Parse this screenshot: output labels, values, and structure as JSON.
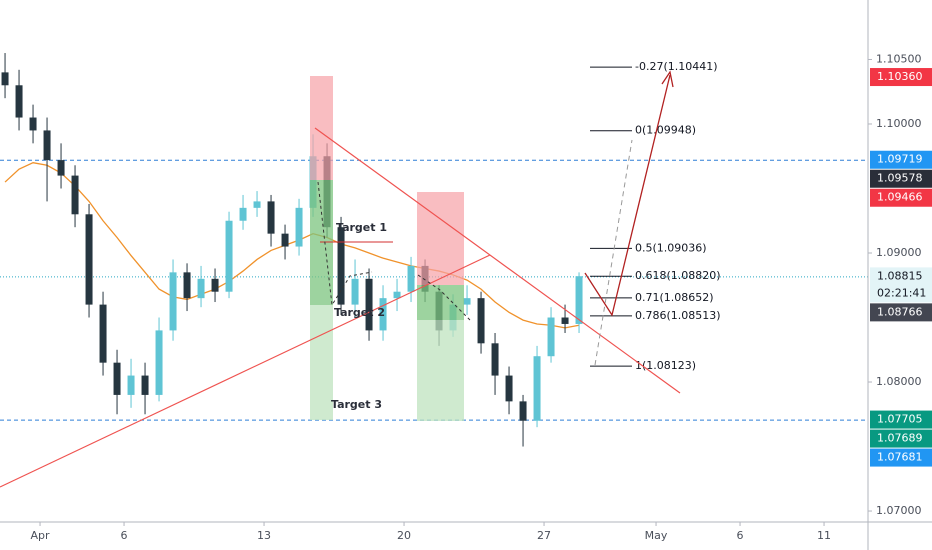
{
  "chart_data": {
    "type": "candlestick",
    "xlim": [
      -1.43,
      29.57
    ],
    "ylim": [
      1.06915,
      1.10961
    ],
    "xticks": [
      {
        "value": 0,
        "label": "Apr"
      },
      {
        "value": 3,
        "label": "6"
      },
      {
        "value": 8,
        "label": "13"
      },
      {
        "value": 13,
        "label": "20"
      },
      {
        "value": 18,
        "label": "27"
      },
      {
        "value": 22,
        "label": "May"
      },
      {
        "value": 25,
        "label": "6"
      },
      {
        "value": 28,
        "label": "11"
      }
    ],
    "yticks": [
      {
        "value": 1.105,
        "label": "1.10500"
      },
      {
        "value": 1.1,
        "label": "1.10000"
      },
      {
        "value": 1.09,
        "label": "1.09000"
      },
      {
        "value": 1.08,
        "label": "1.08000"
      },
      {
        "value": 1.07,
        "label": "1.07000"
      }
    ],
    "grid": false,
    "bull_color": "#5fc4d4",
    "bear_color": "#263640",
    "x": [
      -1.25,
      -0.75,
      -0.25,
      0.25,
      0.75,
      1.25,
      1.75,
      2.25,
      2.75,
      3.25,
      3.75,
      4.25,
      4.75,
      5.25,
      5.75,
      6.25,
      6.75,
      7.25,
      7.75,
      8.25,
      8.75,
      9.25,
      9.75,
      10.25,
      10.75,
      11.25,
      11.75,
      12.25,
      12.75,
      13.25,
      13.75,
      14.25,
      14.75,
      15.25,
      15.75,
      16.25,
      16.75,
      17.25,
      17.75,
      18.25,
      18.75,
      19.25
    ],
    "open": [
      1.104,
      1.103,
      1.1005,
      1.0995,
      1.0972,
      1.096,
      1.093,
      1.086,
      1.0815,
      1.079,
      1.0805,
      1.079,
      1.084,
      1.0885,
      1.0865,
      1.088,
      1.087,
      1.0925,
      1.0935,
      1.094,
      1.0915,
      1.0905,
      1.0935,
      1.0975,
      1.092,
      1.086,
      1.088,
      1.084,
      1.0865,
      1.087,
      1.089,
      1.087,
      1.084,
      1.086,
      1.0865,
      1.083,
      1.0805,
      1.0785,
      1.077,
      1.082,
      1.085,
      1.0845
    ],
    "high": [
      1.1055,
      1.1042,
      1.1015,
      1.1005,
      1.0985,
      1.0968,
      1.0938,
      1.087,
      1.0825,
      1.0818,
      1.0815,
      1.085,
      1.0895,
      1.0892,
      1.089,
      1.0888,
      1.0932,
      1.0945,
      1.0948,
      1.0945,
      1.0922,
      1.0942,
      1.0992,
      1.0985,
      1.0928,
      1.0895,
      1.0888,
      1.0875,
      1.088,
      1.0897,
      1.0895,
      1.0875,
      1.0868,
      1.0875,
      1.087,
      1.0838,
      1.0812,
      1.079,
      1.0828,
      1.0858,
      1.086,
      1.0885
    ],
    "low": [
      1.102,
      1.0995,
      1.0985,
      1.094,
      1.095,
      1.092,
      1.085,
      1.0805,
      1.0775,
      1.078,
      1.0775,
      1.0785,
      1.0832,
      1.0855,
      1.0858,
      1.0862,
      1.0865,
      1.0918,
      1.0928,
      1.0905,
      1.0895,
      1.0898,
      1.0928,
      1.0912,
      1.0852,
      1.085,
      1.0832,
      1.0832,
      1.0855,
      1.0862,
      1.0862,
      1.0828,
      1.0835,
      1.0852,
      1.0822,
      1.079,
      1.0775,
      1.075,
      1.0765,
      1.0815,
      1.0838,
      1.0838
    ],
    "close": [
      1.103,
      1.1005,
      1.0995,
      1.0972,
      1.096,
      1.093,
      1.086,
      1.0815,
      1.079,
      1.0805,
      1.079,
      1.084,
      1.0885,
      1.0865,
      1.088,
      1.087,
      1.0925,
      1.0935,
      1.094,
      1.0915,
      1.0905,
      1.0935,
      1.0975,
      1.092,
      1.086,
      1.088,
      1.084,
      1.0865,
      1.087,
      1.089,
      1.087,
      1.084,
      1.086,
      1.0865,
      1.083,
      1.0805,
      1.0785,
      1.077,
      1.082,
      1.085,
      1.0845,
      1.0882
    ],
    "moving_average": {
      "color": "#f0922b",
      "values": [
        1.0955,
        1.0965,
        1.097,
        1.0968,
        1.0962,
        1.0952,
        1.094,
        1.0925,
        1.0912,
        1.0898,
        1.0885,
        1.0872,
        1.0866,
        1.0864,
        1.0868,
        1.0872,
        1.0878,
        1.0886,
        1.0895,
        1.0902,
        1.0906,
        1.091,
        1.0915,
        1.0912,
        1.0907,
        1.0904,
        1.09,
        1.0896,
        1.0893,
        1.089,
        1.0888,
        1.0886,
        1.0883,
        1.0879,
        1.0872,
        1.0862,
        1.0854,
        1.0848,
        1.0845,
        1.0844,
        1.0842,
        1.0844
      ]
    },
    "levels": [
      {
        "value": 1.09719,
        "style": "dashed",
        "color": "#2f7fd6"
      },
      {
        "value": 1.08815,
        "style": "dotted",
        "color": "#29a8c4"
      },
      {
        "value": 1.07705,
        "style": "dashed",
        "color": "#2f7fd6"
      }
    ],
    "price_labels": [
      {
        "value": 1.1036,
        "label": "1.10360",
        "color": "#f23645"
      },
      {
        "value": 1.09719,
        "label": "1.09719",
        "color": "#2196f3"
      },
      {
        "value": 1.09578,
        "label": "1.09578",
        "color": "#2a2e39"
      },
      {
        "value": 1.09466,
        "label": "1.09466",
        "color": "#f23645"
      },
      {
        "value": 1.08815,
        "label": "1.08815",
        "color": "#e3f4f7",
        "countdown": "02:21:41"
      },
      {
        "value": 1.08766,
        "label": "1.08766",
        "color": "#434651"
      },
      {
        "value": 1.07705,
        "label": "1.07705",
        "color": "#089981"
      },
      {
        "value": 1.07689,
        "label": "1.07689",
        "color": "#089981"
      },
      {
        "value": 1.07681,
        "label": "1.07681",
        "color": "#2196f3"
      }
    ],
    "fib_levels": [
      {
        "value": 1.10441,
        "label": "-0.27(1.10441)"
      },
      {
        "value": 1.09948,
        "label": "0(1.09948)"
      },
      {
        "value": 1.09036,
        "label": "0.5(1.09036)"
      },
      {
        "value": 1.0882,
        "label": "0.618(1.08820)"
      },
      {
        "value": 1.08652,
        "label": "0.71(1.08652)"
      },
      {
        "value": 1.08513,
        "label": "0.786(1.08513)"
      },
      {
        "value": 1.08123,
        "label": "1(1.08123)"
      }
    ],
    "annotations": [
      "Target 1",
      "Target 2",
      "Target 3"
    ]
  }
}
